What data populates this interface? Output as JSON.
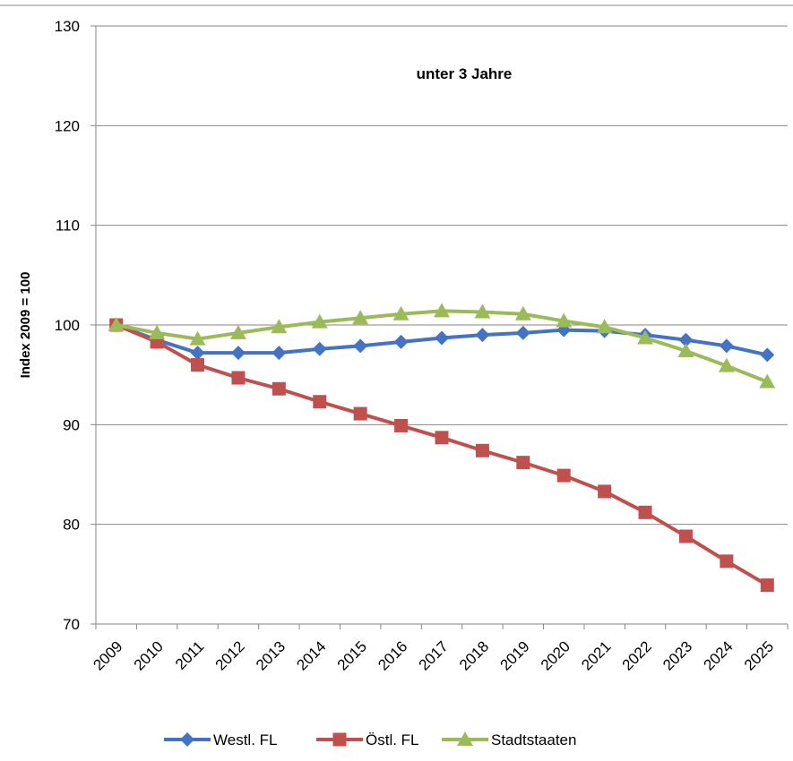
{
  "chart_data": {
    "type": "line",
    "title": "unter 3 Jahre",
    "xlabel": "",
    "ylabel": "Index 2009 = 100",
    "ylim": [
      70,
      130
    ],
    "yticks": [
      70,
      80,
      90,
      100,
      110,
      120,
      130
    ],
    "grid": "horizontal",
    "legend_position": "bottom",
    "categories": [
      "2009",
      "2010",
      "2011",
      "2012",
      "2013",
      "2014",
      "2015",
      "2016",
      "2017",
      "2018",
      "2019",
      "2020",
      "2021",
      "2022",
      "2023",
      "2024",
      "2025"
    ],
    "series": [
      {
        "name": "Westl. FL",
        "color": "#4472C4",
        "marker": "diamond",
        "values": [
          100.0,
          98.5,
          97.2,
          97.2,
          97.2,
          97.6,
          97.9,
          98.3,
          98.7,
          99.0,
          99.2,
          99.5,
          99.4,
          99.0,
          98.5,
          97.9,
          97.0
        ]
      },
      {
        "name": "Östl. FL",
        "color": "#C0504D",
        "marker": "square",
        "values": [
          100.0,
          98.3,
          96.0,
          94.7,
          93.6,
          92.3,
          91.1,
          89.9,
          88.7,
          87.4,
          86.2,
          84.9,
          83.3,
          81.2,
          78.8,
          76.3,
          73.9
        ]
      },
      {
        "name": "Stadtstaaten",
        "color": "#9BBB59",
        "marker": "triangle",
        "values": [
          100.0,
          99.2,
          98.6,
          99.2,
          99.8,
          100.3,
          100.7,
          101.1,
          101.4,
          101.3,
          101.1,
          100.4,
          99.8,
          98.7,
          97.4,
          95.9,
          94.3
        ]
      }
    ]
  }
}
